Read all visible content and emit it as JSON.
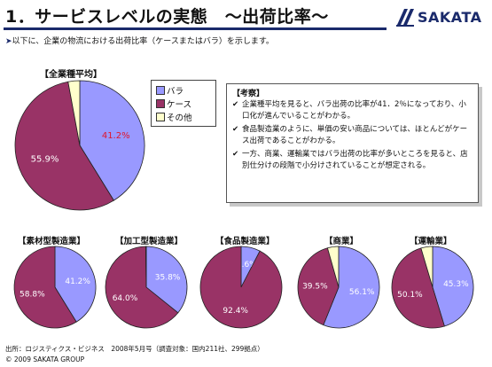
{
  "slide": {
    "title": "1．サービスレベルの実態　～出荷比率～",
    "brand": "SAKATA",
    "intro_arrow": "➤",
    "intro": "以下に、企業の物流における出荷比率（ケースまたはバラ）を示します。"
  },
  "legend": [
    {
      "label": "バラ",
      "color": "#9999ff"
    },
    {
      "label": "ケース",
      "color": "#993366"
    },
    {
      "label": "その他",
      "color": "#ffffcc"
    }
  ],
  "note": {
    "title": "【考察】",
    "check": "✔",
    "items": [
      "企業種平均を見ると、バラ出荷の比率が41．2％になっており、小口化が進んでいることがわかる。",
      "食品製造業のように、単価の安い商品については、ほとんどがケース出荷であることがわかる。",
      "一方、商業、運輸業ではバラ出荷の比率が多いところを見ると、店別仕分けの段階で小分けされていることが想定される。"
    ]
  },
  "chart_data": [
    {
      "type": "pie",
      "title": "【全業種平均】",
      "categories": [
        "バラ",
        "ケース",
        "その他"
      ],
      "values": [
        41.2,
        55.9,
        2.9
      ],
      "labels": [
        "41.2%",
        "55.9%",
        ""
      ]
    },
    {
      "type": "pie",
      "title": "【素材型製造業】",
      "categories": [
        "バラ",
        "ケース",
        "その他"
      ],
      "values": [
        41.2,
        58.8,
        0
      ],
      "labels": [
        "41.2%",
        "58.8%",
        ""
      ]
    },
    {
      "type": "pie",
      "title": "【加工型製造業】",
      "categories": [
        "バラ",
        "ケース",
        "その他"
      ],
      "values": [
        35.8,
        64.0,
        0.2
      ],
      "labels": [
        "35.8%",
        "64.0%",
        ""
      ]
    },
    {
      "type": "pie",
      "title": "【食品製造業】",
      "categories": [
        "バラ",
        "ケース",
        "その他"
      ],
      "values": [
        7.6,
        92.4,
        0
      ],
      "labels": [
        "7.6%",
        "92.4%",
        ""
      ]
    },
    {
      "type": "pie",
      "title": "【商業】",
      "categories": [
        "バラ",
        "ケース",
        "その他"
      ],
      "values": [
        56.1,
        39.5,
        4.4
      ],
      "labels": [
        "56.1%",
        "39.5%",
        ""
      ]
    },
    {
      "type": "pie",
      "title": "【運輸業】",
      "categories": [
        "バラ",
        "ケース",
        "その他"
      ],
      "values": [
        45.3,
        50.1,
        4.6
      ],
      "labels": [
        "45.3%",
        "50.1%",
        ""
      ]
    }
  ],
  "footer": {
    "source": "出所：ロジスティクス・ビジネス　2008年5月号（調査対象：国内211社、299拠点）",
    "copyright": "© 2009 SAKATA GROUP"
  }
}
